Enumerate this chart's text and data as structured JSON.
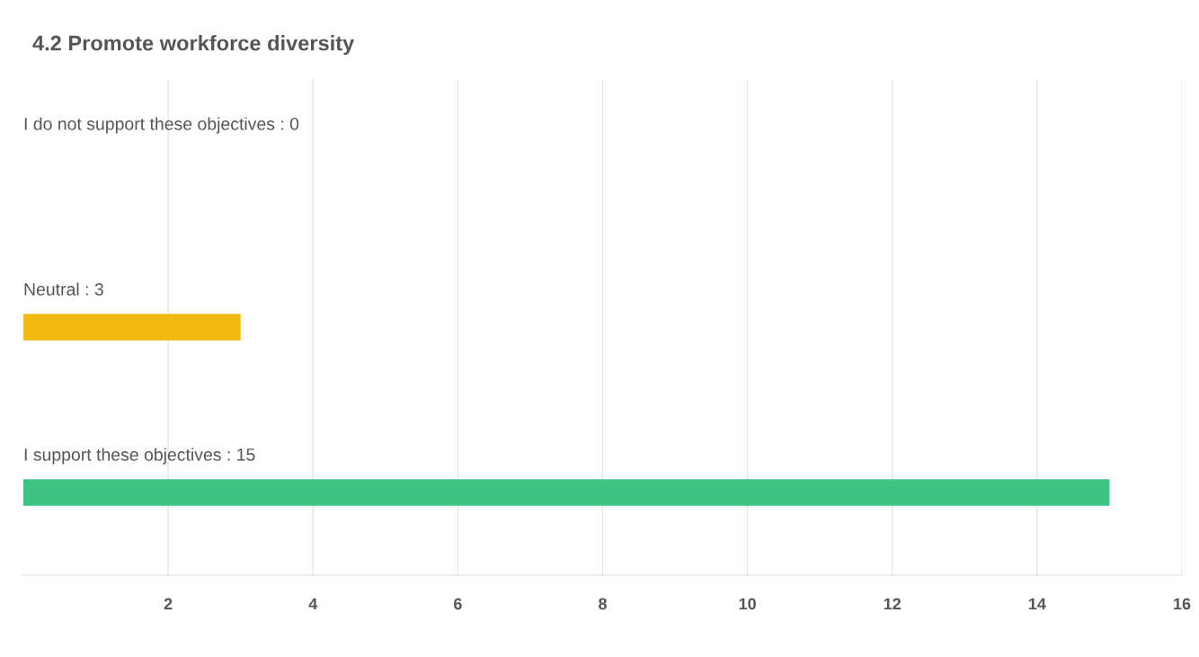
{
  "chart_data": {
    "type": "bar",
    "orientation": "horizontal",
    "title": "4.2 Promote workforce diversity",
    "categories": [
      "I do not support these objectives : 0",
      "Neutral : 3",
      "I support these objectives : 15"
    ],
    "values": [
      0,
      3,
      15
    ],
    "colors": [
      "#dddddd",
      "#f2b90f",
      "#3dc482"
    ],
    "xlim": [
      0,
      16
    ],
    "xticks": [
      2,
      4,
      6,
      8,
      10,
      12,
      14,
      16
    ],
    "grid": "x",
    "tick_labels": "x"
  }
}
